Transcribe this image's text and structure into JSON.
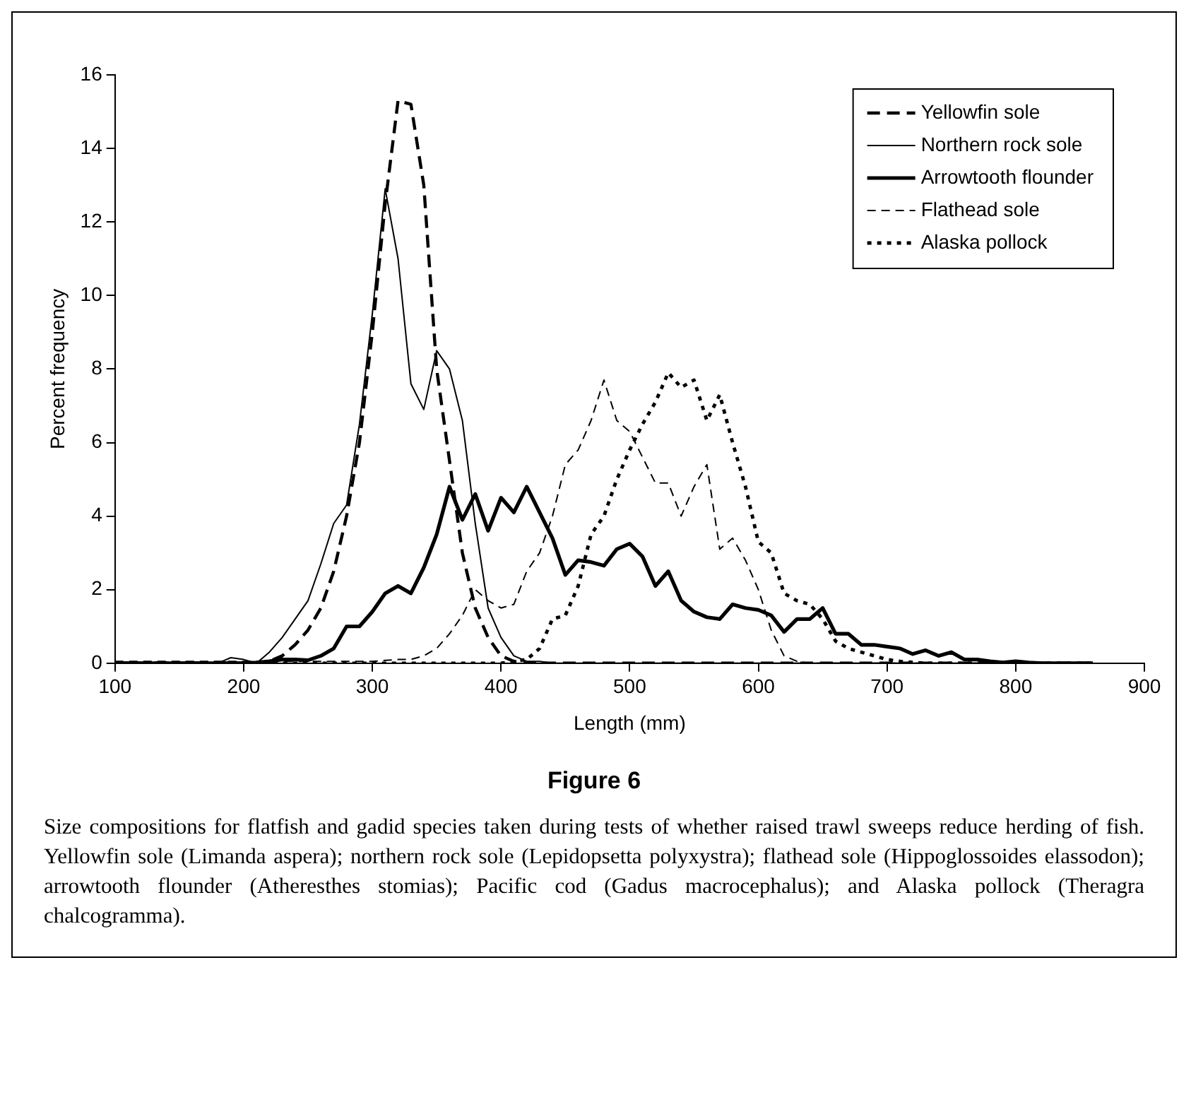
{
  "chart_data": {
    "type": "line",
    "title": "Figure 6",
    "xlabel": "Length (mm)",
    "ylabel": "Percent frequency",
    "xlim": [
      100,
      900
    ],
    "xticks": [
      100,
      200,
      300,
      400,
      500,
      600,
      700,
      800,
      900
    ],
    "ylim": [
      0,
      16
    ],
    "yticks": [
      0,
      2,
      4,
      6,
      8,
      10,
      12,
      14,
      16
    ],
    "grid": false,
    "legend": "top right",
    "marker": "none",
    "annotations": [
      "Size compositions for flatfish and gadid species taken during tests of whether raised trawl sweeps reduce herding of fish. Yellowfin sole (Limanda aspera); northern rock sole (Lepidopsetta polyxystra); flathead sole (Hippoglossoides elassodon); arrowtooth flounder (Atheresthes stomias); Pacific cod (Gadus macrocephalus); and Alaska pollock (Theragra chalcogramma)."
    ],
    "series": [
      {
        "name": "Yellowfin sole",
        "color": "#000000",
        "line_style": "dashed",
        "x": [
          100,
          200,
          210,
          220,
          230,
          240,
          250,
          260,
          270,
          280,
          290,
          300,
          310,
          320,
          330,
          340,
          350,
          360,
          370,
          380,
          390,
          400,
          410,
          420,
          860
        ],
        "values": [
          0,
          0,
          0,
          0.05,
          0.2,
          0.5,
          0.9,
          1.5,
          2.5,
          4.0,
          6.0,
          9.0,
          12.5,
          15.3,
          15.2,
          13.0,
          8.0,
          5.5,
          3.0,
          1.5,
          0.7,
          0.2,
          0.05,
          0,
          0
        ]
      },
      {
        "name": "Northern rock sole",
        "color": "#000000",
        "line_style": "solid",
        "x": [
          100,
          180,
          190,
          200,
          210,
          220,
          230,
          240,
          250,
          260,
          270,
          280,
          290,
          300,
          310,
          320,
          330,
          340,
          350,
          360,
          370,
          380,
          390,
          400,
          410,
          420,
          430,
          440,
          860
        ],
        "values": [
          0,
          0,
          0.15,
          0.1,
          0,
          0.3,
          0.7,
          1.2,
          1.7,
          2.7,
          3.8,
          4.3,
          6.5,
          9.5,
          12.9,
          11.0,
          7.6,
          6.9,
          8.5,
          8.0,
          6.6,
          3.8,
          1.5,
          0.7,
          0.2,
          0.05,
          0.05,
          0,
          0
        ]
      },
      {
        "name": "Arrowtooth flounder",
        "color": "#000000",
        "line_style": "solid",
        "x": [
          100,
          200,
          210,
          220,
          230,
          240,
          250,
          260,
          270,
          280,
          290,
          300,
          310,
          320,
          330,
          340,
          350,
          360,
          370,
          380,
          390,
          400,
          410,
          420,
          430,
          440,
          450,
          460,
          470,
          480,
          490,
          500,
          510,
          520,
          530,
          540,
          550,
          560,
          570,
          580,
          590,
          600,
          610,
          620,
          630,
          640,
          650,
          660,
          670,
          680,
          690,
          700,
          710,
          720,
          730,
          740,
          750,
          760,
          770,
          780,
          790,
          800,
          810,
          820,
          860
        ],
        "values": [
          0,
          0,
          0.02,
          0.05,
          0.1,
          0.1,
          0.08,
          0.2,
          0.4,
          1.0,
          1.0,
          1.4,
          1.9,
          2.1,
          1.9,
          2.6,
          3.5,
          4.8,
          3.9,
          4.6,
          3.6,
          4.5,
          4.1,
          4.8,
          4.1,
          3.4,
          2.4,
          2.8,
          2.75,
          2.65,
          3.1,
          3.25,
          2.9,
          2.1,
          2.5,
          1.7,
          1.4,
          1.25,
          1.2,
          1.6,
          1.5,
          1.45,
          1.3,
          0.85,
          1.2,
          1.2,
          1.5,
          0.8,
          0.8,
          0.5,
          0.5,
          0.45,
          0.4,
          0.25,
          0.35,
          0.2,
          0.3,
          0.1,
          0.1,
          0.05,
          0.02,
          0.05,
          0.02,
          0,
          0
        ]
      },
      {
        "name": "Flathead sole",
        "color": "#000000",
        "line_style": "dashed",
        "x": [
          100,
          300,
          320,
          330,
          340,
          350,
          360,
          370,
          380,
          390,
          400,
          410,
          420,
          430,
          440,
          450,
          460,
          470,
          480,
          490,
          500,
          510,
          520,
          530,
          540,
          550,
          560,
          570,
          580,
          590,
          600,
          610,
          620,
          630,
          640,
          860
        ],
        "values": [
          0.05,
          0.05,
          0.1,
          0.1,
          0.2,
          0.4,
          0.8,
          1.3,
          2.0,
          1.7,
          1.5,
          1.6,
          2.5,
          3.0,
          4.0,
          5.4,
          5.8,
          6.6,
          7.7,
          6.6,
          6.3,
          5.6,
          4.9,
          4.9,
          4.0,
          4.8,
          5.4,
          3.1,
          3.4,
          2.8,
          2.0,
          0.9,
          0.2,
          0.05,
          0,
          0
        ]
      },
      {
        "name": "Alaska pollock",
        "color": "#000000",
        "line_style": "dotted",
        "x": [
          100,
          400,
          410,
          420,
          430,
          440,
          450,
          460,
          470,
          480,
          490,
          500,
          510,
          520,
          530,
          540,
          550,
          560,
          570,
          580,
          590,
          600,
          610,
          620,
          630,
          640,
          650,
          660,
          670,
          680,
          690,
          700,
          710,
          720,
          730,
          860
        ],
        "values": [
          0,
          0,
          0.05,
          0.1,
          0.4,
          1.2,
          1.3,
          2.1,
          3.5,
          4.0,
          5.0,
          5.8,
          6.5,
          7.1,
          7.9,
          7.5,
          7.7,
          6.6,
          7.3,
          6.0,
          4.8,
          3.3,
          3.0,
          1.9,
          1.7,
          1.6,
          1.2,
          0.6,
          0.4,
          0.3,
          0.2,
          0.1,
          0.05,
          0.02,
          0,
          0
        ]
      }
    ]
  }
}
